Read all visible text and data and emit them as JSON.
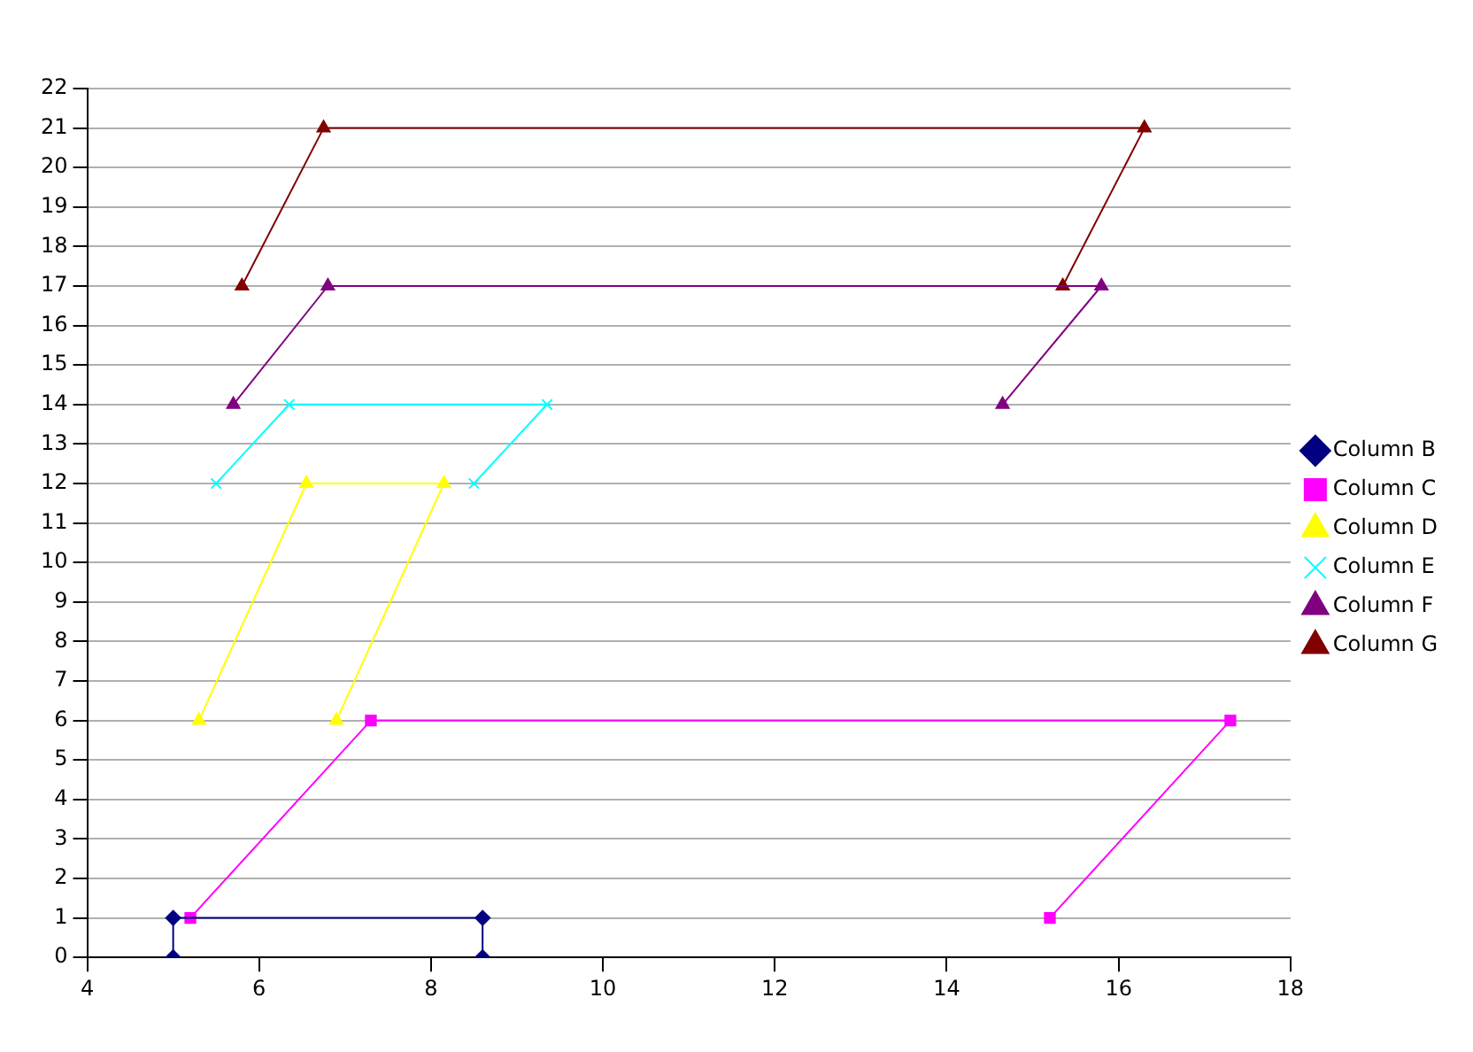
{
  "chart_data": {
    "type": "line",
    "xlim": [
      4,
      18
    ],
    "xticks": [
      4,
      6,
      8,
      10,
      12,
      14,
      16,
      18
    ],
    "ylim": [
      0,
      22
    ],
    "yticks": [
      0,
      1,
      2,
      3,
      4,
      5,
      6,
      7,
      8,
      9,
      10,
      11,
      12,
      13,
      14,
      15,
      16,
      17,
      18,
      19,
      20,
      21,
      22
    ],
    "grid": "y",
    "legend": "right",
    "series": [
      {
        "name": "Column B",
        "color": "#000080",
        "marker": "diamond",
        "x": [
          5.0,
          5.0,
          8.6,
          8.6
        ],
        "values": [
          0,
          1,
          1,
          0
        ]
      },
      {
        "name": "Column C",
        "color": "#ff00ff",
        "marker": "square",
        "x": [
          5.2,
          7.3,
          17.3,
          15.2
        ],
        "values": [
          1,
          6,
          6,
          1
        ]
      },
      {
        "name": "Column D",
        "color": "#ffff00",
        "marker": "triangle",
        "x": [
          5.3,
          6.55,
          8.15,
          6.9
        ],
        "values": [
          6,
          12,
          12,
          6
        ]
      },
      {
        "name": "Column E",
        "color": "#00ffff",
        "marker": "cross",
        "x": [
          5.5,
          6.35,
          9.35,
          8.5
        ],
        "values": [
          12,
          14,
          14,
          12
        ]
      },
      {
        "name": "Column F",
        "color": "#800080",
        "marker": "triangle",
        "x": [
          5.7,
          6.8,
          15.8,
          14.65
        ],
        "values": [
          14,
          17,
          17,
          14
        ]
      },
      {
        "name": "Column G",
        "color": "#800000",
        "marker": "triangle",
        "x": [
          5.8,
          6.75,
          16.3,
          15.35
        ],
        "values": [
          17,
          21,
          21,
          17
        ]
      }
    ]
  }
}
